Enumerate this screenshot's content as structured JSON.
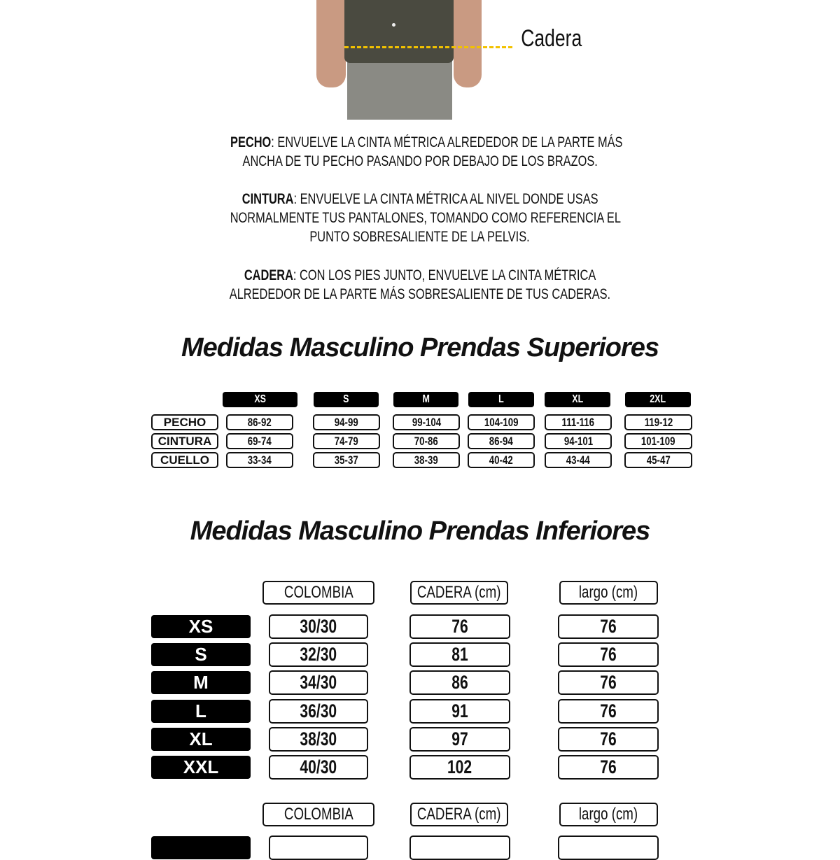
{
  "photo": {
    "hip_label": "Cadera",
    "guide_color": "#f2c200",
    "shirt_color": "#4a4a40",
    "jeans_color": "#8a8a84"
  },
  "instructions": [
    {
      "term": "PECHO",
      "lines": [
        ": ENVUELVE LA CINTA MÉTRICA ALREDEDOR DE LA PARTE MÁS",
        "ANCHA DE TU PECHO PASANDO POR DEBAJO DE LOS BRAZOS."
      ]
    },
    {
      "term": "CINTURA",
      "lines": [
        ": ENVUELVE LA CINTA MÉTRICA AL NIVEL DONDE USAS",
        "NORMALMENTE TUS PANTALONES, TOMANDO COMO REFERENCIA EL",
        "PUNTO SOBRESALIENTE DE LA PELVIS."
      ]
    },
    {
      "term": "CADERA",
      "lines": [
        ": CON LOS PIES JUNTO, ENVUELVE LA CINTA MÉTRICA",
        "ALREDEDOR DE LA PARTE MÁS SOBRESALIENTE DE TUS CADERAS."
      ]
    }
  ],
  "tops": {
    "title": "Medidas Masculino Prendas Superiores",
    "sizes": [
      "XS",
      "S",
      "M",
      "L",
      "XL",
      "2XL"
    ],
    "rows": [
      {
        "label": "PECHO",
        "values": [
          "86-92",
          "94-99",
          "99-104",
          "104-109",
          "111-116",
          "119-12"
        ]
      },
      {
        "label": "CINTURA",
        "values": [
          "69-74",
          "74-79",
          "70-86",
          "86-94",
          "94-101",
          "101-109"
        ]
      },
      {
        "label": "CUELLO",
        "values": [
          "33-34",
          "35-37",
          "38-39",
          "40-42",
          "43-44",
          "45-47"
        ]
      }
    ]
  },
  "bottoms": {
    "title": "Medidas Masculino Prendas Inferiores",
    "headers": [
      "COLOMBIA",
      "CADERA (cm)",
      "largo (cm)"
    ],
    "rows": [
      {
        "size": "XS",
        "values": [
          "30/30",
          "76",
          "76"
        ]
      },
      {
        "size": "S",
        "values": [
          "32/30",
          "81",
          "76"
        ]
      },
      {
        "size": "M",
        "values": [
          "34/30",
          "86",
          "76"
        ]
      },
      {
        "size": "L",
        "values": [
          "36/30",
          "91",
          "76"
        ]
      },
      {
        "size": "XL",
        "values": [
          "38/30",
          "97",
          "76"
        ]
      },
      {
        "size": "XXL",
        "values": [
          "40/30",
          "102",
          "76"
        ]
      }
    ],
    "headers_2": [
      "COLOMBIA",
      "CADERA (cm)",
      "largo (cm)"
    ]
  }
}
